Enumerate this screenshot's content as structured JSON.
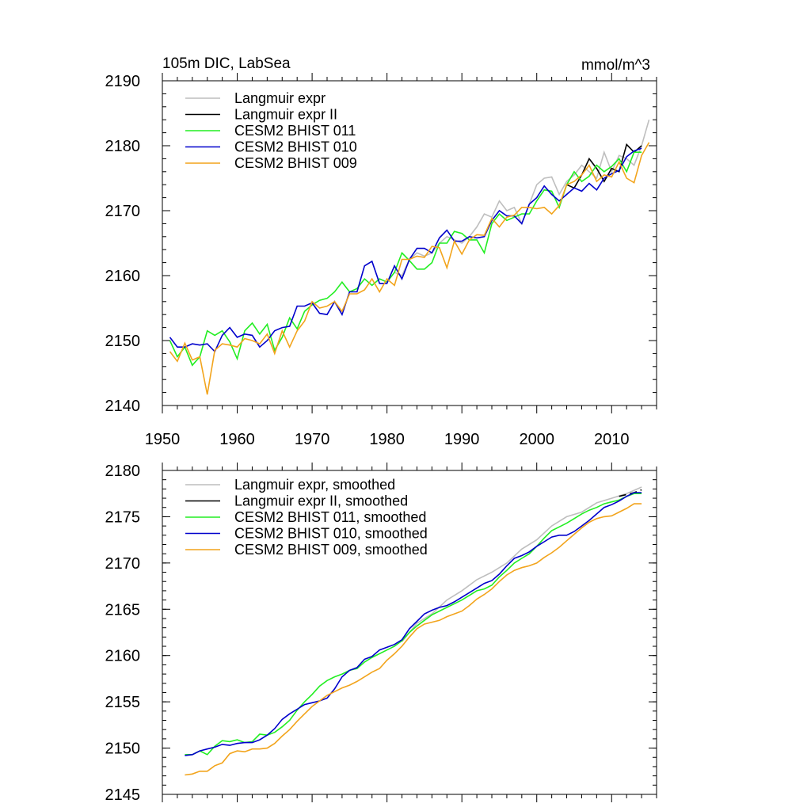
{
  "chart_data": [
    {
      "type": "line",
      "title": "105m DIC, LabSea",
      "units": "mmol/m^3",
      "xlim": [
        1950,
        2016
      ],
      "ylim": [
        2140,
        2190
      ],
      "xticks": [
        1950,
        1960,
        1970,
        1980,
        1990,
        2000,
        2010
      ],
      "yticks": [
        2140,
        2150,
        2160,
        2170,
        2180,
        2190
      ],
      "legend_position": "top-left",
      "series": [
        {
          "name": "Langmuir expr",
          "color": "#bebebe",
          "x": [
            1980,
            1981,
            1982,
            1983,
            1984,
            1985,
            1986,
            1987,
            1988,
            1989,
            1990,
            1991,
            1992,
            1993,
            1994,
            1995,
            1996,
            1997,
            1998,
            1999,
            2000,
            2001,
            2002,
            2003,
            2004,
            2005,
            2006,
            2007,
            2008,
            2009,
            2010,
            2011,
            2012,
            2013,
            2014,
            2015
          ],
          "y": [
            2159,
            2160.5,
            2160,
            2162.5,
            2163.5,
            2163,
            2163.5,
            2165,
            2166,
            2165.5,
            2165,
            2166,
            2167.5,
            2169.5,
            2169,
            2171.5,
            2170,
            2170.5,
            2168,
            2171,
            2174,
            2175,
            2175.2,
            2172.5,
            2174.5,
            2175.5,
            2177,
            2176,
            2175,
            2179,
            2176,
            2178.5,
            2178,
            2177,
            2180,
            2184
          ]
        },
        {
          "name": "Langmuir expr II",
          "color": "#000000",
          "x": [
            2004,
            2005,
            2006,
            2007,
            2008,
            2009,
            2010,
            2011,
            2012,
            2013,
            2014
          ],
          "y": [
            2174,
            2173.5,
            2175.5,
            2178,
            2176.5,
            2174.5,
            2176.5,
            2176,
            2180.2,
            2179,
            2180
          ]
        },
        {
          "name": "CESM2 BHIST 011",
          "color": "#22ee22",
          "x": [
            1951,
            1952,
            1953,
            1954,
            1955,
            1956,
            1957,
            1958,
            1959,
            1960,
            1961,
            1962,
            1963,
            1964,
            1965,
            1966,
            1967,
            1968,
            1969,
            1970,
            1971,
            1972,
            1973,
            1974,
            1975,
            1976,
            1977,
            1978,
            1979,
            1980,
            1981,
            1982,
            1983,
            1984,
            1985,
            1986,
            1987,
            1988,
            1989,
            1990,
            1991,
            1992,
            1993,
            1994,
            1995,
            1996,
            1997,
            1998,
            1999,
            2000,
            2001,
            2002,
            2003,
            2004,
            2005,
            2006,
            2007,
            2008,
            2009,
            2010,
            2011,
            2012,
            2013,
            2014
          ],
          "y": [
            2150,
            2147.5,
            2149,
            2146.2,
            2147.5,
            2151.5,
            2150.8,
            2151.5,
            2149.8,
            2147.2,
            2151.5,
            2152.7,
            2151,
            2152.5,
            2148.5,
            2150.5,
            2153.5,
            2151.8,
            2154.5,
            2155.5,
            2156.2,
            2156.5,
            2157.5,
            2159,
            2157.5,
            2158,
            2159.5,
            2158.5,
            2159.5,
            2159,
            2160.5,
            2163.5,
            2162.3,
            2161,
            2161,
            2162,
            2165,
            2165,
            2166.8,
            2166.5,
            2165.5,
            2165.5,
            2163.5,
            2168,
            2169.5,
            2168.5,
            2169,
            2169.5,
            2169.5,
            2171.5,
            2173.2,
            2173,
            2170.5,
            2174,
            2176,
            2174.5,
            2175.3,
            2177,
            2176,
            2176.8,
            2178,
            2176,
            2179,
            2179
          ]
        },
        {
          "name": "CESM2 BHIST 010",
          "color": "#0000cc",
          "x": [
            1951,
            1952,
            1953,
            1954,
            1955,
            1956,
            1957,
            1958,
            1959,
            1960,
            1961,
            1962,
            1963,
            1964,
            1965,
            1966,
            1967,
            1968,
            1969,
            1970,
            1971,
            1972,
            1973,
            1974,
            1975,
            1976,
            1977,
            1978,
            1979,
            1980,
            1981,
            1982,
            1983,
            1984,
            1985,
            1986,
            1987,
            1988,
            1989,
            1990,
            1991,
            1992,
            1993,
            1994,
            1995,
            1996,
            1997,
            1998,
            1999,
            2000,
            2001,
            2002,
            2003,
            2004,
            2005,
            2006,
            2007,
            2008,
            2009,
            2010,
            2011,
            2012,
            2013,
            2014
          ],
          "y": [
            2150.5,
            2149,
            2149,
            2149.5,
            2149.3,
            2149.5,
            2148.3,
            2150.8,
            2152,
            2150.5,
            2151,
            2150.8,
            2149,
            2150,
            2151.5,
            2152,
            2152.2,
            2155.3,
            2155.3,
            2155.8,
            2154.2,
            2154,
            2156,
            2154,
            2157.5,
            2157.5,
            2161.5,
            2162.2,
            2158.8,
            2158.8,
            2161.5,
            2159.5,
            2162.5,
            2164.2,
            2164.2,
            2163.5,
            2165.8,
            2167,
            2165.3,
            2165.3,
            2166,
            2165.8,
            2166,
            2168.5,
            2170,
            2169.2,
            2169.2,
            2168,
            2171,
            2172,
            2173.8,
            2172.5,
            2171.5,
            2172.5,
            2173.5,
            2173,
            2174.2,
            2173.2,
            2175,
            2175.7,
            2176.2,
            2178.3,
            2179.2,
            2179.6
          ]
        },
        {
          "name": "CESM2 BHIST 009",
          "color": "#f2a41c",
          "x": [
            1951,
            1952,
            1953,
            1954,
            1955,
            1956,
            1957,
            1958,
            1959,
            1960,
            1961,
            1962,
            1963,
            1964,
            1965,
            1966,
            1967,
            1968,
            1969,
            1970,
            1971,
            1972,
            1973,
            1974,
            1975,
            1976,
            1977,
            1978,
            1979,
            1980,
            1981,
            1982,
            1983,
            1984,
            1985,
            1986,
            1987,
            1988,
            1989,
            1990,
            1991,
            1992,
            1993,
            1994,
            1995,
            1996,
            1997,
            1998,
            1999,
            2000,
            2001,
            2002,
            2003,
            2004,
            2005,
            2006,
            2007,
            2008,
            2009,
            2010,
            2011,
            2012,
            2013,
            2014,
            2015
          ],
          "y": [
            2148.3,
            2146.8,
            2149.6,
            2147,
            2147.5,
            2141.7,
            2148.5,
            2149.5,
            2149.3,
            2149,
            2150.3,
            2150,
            2149.5,
            2151,
            2148,
            2151.5,
            2149,
            2151.5,
            2153,
            2156,
            2155,
            2155.3,
            2156,
            2154.5,
            2157.2,
            2157.2,
            2157.8,
            2159.5,
            2157.5,
            2159.5,
            2158.5,
            2162.5,
            2162.5,
            2163,
            2162.8,
            2164.5,
            2164.3,
            2161.2,
            2165.3,
            2163.3,
            2165.5,
            2166.3,
            2166.2,
            2168.8,
            2167.5,
            2169,
            2169.3,
            2170.5,
            2170.5,
            2170.3,
            2170.5,
            2169.5,
            2170.8,
            2174,
            2174.5,
            2175.5,
            2177,
            2174.5,
            2175.5,
            2175.2,
            2177.5,
            2175,
            2174.3,
            2178.5,
            2180.5
          ]
        }
      ]
    },
    {
      "type": "line",
      "title": "",
      "xlim": [
        1950,
        2016
      ],
      "ylim": [
        2145,
        2180
      ],
      "xticks": [
        1950,
        1960,
        1970,
        1980,
        1990,
        2000,
        2010
      ],
      "yticks": [
        2145,
        2150,
        2155,
        2160,
        2165,
        2170,
        2175,
        2180
      ],
      "legend_position": "top-left",
      "series": [
        {
          "name": "Langmuir expr, smoothed",
          "color": "#bebebe",
          "x": [
            1982,
            1984,
            1986,
            1988,
            1990,
            1992,
            1994,
            1996,
            1998,
            2000,
            2002,
            2004,
            2006,
            2008,
            2010,
            2012,
            2014
          ],
          "y": [
            2161.5,
            2163.5,
            2164.5,
            2166,
            2167,
            2168.2,
            2169,
            2170,
            2171.5,
            2172.5,
            2174,
            2175,
            2175.5,
            2176.5,
            2177,
            2177.5,
            2178.2
          ]
        },
        {
          "name": "Langmuir expr II, smoothed",
          "color": "#000000",
          "x": [
            2011,
            2012,
            2013,
            2014
          ],
          "y": [
            2177.2,
            2177.4,
            2177.6,
            2177.9
          ]
        },
        {
          "name": "CESM2 BHIST 011, smoothed",
          "color": "#22ee22",
          "x": [
            1953,
            1954,
            1955,
            1956,
            1957,
            1958,
            1959,
            1960,
            1961,
            1962,
            1963,
            1964,
            1965,
            1966,
            1967,
            1968,
            1969,
            1970,
            1971,
            1972,
            1973,
            1974,
            1975,
            1976,
            1977,
            1978,
            1979,
            1980,
            1981,
            1982,
            1983,
            1984,
            1985,
            1986,
            1987,
            1988,
            1989,
            1990,
            1991,
            1992,
            1993,
            1994,
            1995,
            1996,
            1997,
            1998,
            1999,
            2000,
            2001,
            2002,
            2003,
            2004,
            2005,
            2006,
            2007,
            2008,
            2009,
            2010,
            2011,
            2012,
            2013,
            2014
          ],
          "y": [
            2149.3,
            2149.3,
            2149.7,
            2149.3,
            2150.2,
            2150.8,
            2150.7,
            2150.9,
            2150.6,
            2150.7,
            2151.5,
            2151.4,
            2151.7,
            2152.3,
            2153,
            2154.1,
            2155,
            2155.8,
            2156.7,
            2157.3,
            2157.7,
            2158,
            2158.4,
            2158.6,
            2159.3,
            2159.8,
            2160.2,
            2160.6,
            2161,
            2161.6,
            2162.5,
            2163.2,
            2163.8,
            2164.4,
            2164.8,
            2165.2,
            2165.6,
            2166,
            2166.5,
            2167,
            2167.2,
            2167.6,
            2168.5,
            2169.2,
            2170,
            2170.5,
            2171,
            2171.8,
            2172.7,
            2173.5,
            2173.9,
            2174.3,
            2174.8,
            2175.3,
            2175.7,
            2176,
            2176.4,
            2176.6,
            2176.8,
            2177.2,
            2177.5,
            2177.5
          ]
        },
        {
          "name": "CESM2 BHIST 010, smoothed",
          "color": "#0000cc",
          "x": [
            1953,
            1954,
            1955,
            1956,
            1957,
            1958,
            1959,
            1960,
            1961,
            1962,
            1963,
            1964,
            1965,
            1966,
            1967,
            1968,
            1969,
            1970,
            1971,
            1972,
            1973,
            1974,
            1975,
            1976,
            1977,
            1978,
            1979,
            1980,
            1981,
            1982,
            1983,
            1984,
            1985,
            1986,
            1987,
            1988,
            1989,
            1990,
            1991,
            1992,
            1993,
            1994,
            1995,
            1996,
            1997,
            1998,
            1999,
            2000,
            2001,
            2002,
            2003,
            2004,
            2005,
            2006,
            2007,
            2008,
            2009,
            2010,
            2011,
            2012,
            2013,
            2014
          ],
          "y": [
            2149.2,
            2149.3,
            2149.7,
            2149.9,
            2150.1,
            2150.4,
            2150.3,
            2150.5,
            2150.6,
            2150.6,
            2150.9,
            2151.4,
            2152.1,
            2153.1,
            2153.7,
            2154.2,
            2154.7,
            2154.9,
            2155.1,
            2155.4,
            2156.4,
            2157.7,
            2158.4,
            2158.7,
            2159.6,
            2159.9,
            2160.6,
            2160.9,
            2161.2,
            2161.7,
            2162.9,
            2163.7,
            2164.5,
            2164.9,
            2165.2,
            2165.4,
            2165.8,
            2166.3,
            2166.8,
            2167.3,
            2167.8,
            2168.1,
            2168.8,
            2169.7,
            2170.5,
            2170.8,
            2171.2,
            2171.8,
            2172.3,
            2172.8,
            2173,
            2173,
            2173.4,
            2174,
            2174.6,
            2175.3,
            2176,
            2176.3,
            2176.7,
            2177.2,
            2177.6,
            2177.6
          ]
        },
        {
          "name": "CESM2 BHIST 009, smoothed",
          "color": "#f2a41c",
          "x": [
            1953,
            1954,
            1955,
            1956,
            1957,
            1958,
            1959,
            1960,
            1961,
            1962,
            1963,
            1964,
            1965,
            1966,
            1967,
            1968,
            1969,
            1970,
            1971,
            1972,
            1973,
            1974,
            1975,
            1976,
            1977,
            1978,
            1979,
            1980,
            1981,
            1982,
            1983,
            1984,
            1985,
            1986,
            1987,
            1988,
            1989,
            1990,
            1991,
            1992,
            1993,
            1994,
            1995,
            1996,
            1997,
            1998,
            1999,
            2000,
            2001,
            2002,
            2003,
            2004,
            2005,
            2006,
            2007,
            2008,
            2009,
            2010,
            2011,
            2012,
            2013,
            2014
          ],
          "y": [
            2147.1,
            2147.2,
            2147.5,
            2147.5,
            2148.1,
            2148.4,
            2149.4,
            2149.7,
            2149.6,
            2149.9,
            2149.9,
            2150,
            2150.5,
            2151.3,
            2152,
            2152.9,
            2153.7,
            2154.5,
            2155.1,
            2155.7,
            2156.1,
            2156.5,
            2156.8,
            2157.2,
            2157.7,
            2158.2,
            2158.6,
            2159.5,
            2160.2,
            2161,
            2162,
            2162.9,
            2163.4,
            2163.6,
            2163.8,
            2164.2,
            2164.5,
            2164.8,
            2165.4,
            2166.1,
            2166.6,
            2167.2,
            2168,
            2168.7,
            2169.2,
            2169.5,
            2169.7,
            2170,
            2170.6,
            2171.1,
            2171.7,
            2172.4,
            2173.1,
            2173.8,
            2174.4,
            2174.8,
            2175,
            2175.1,
            2175.5,
            2175.9,
            2176.4,
            2176.4
          ]
        }
      ]
    }
  ]
}
